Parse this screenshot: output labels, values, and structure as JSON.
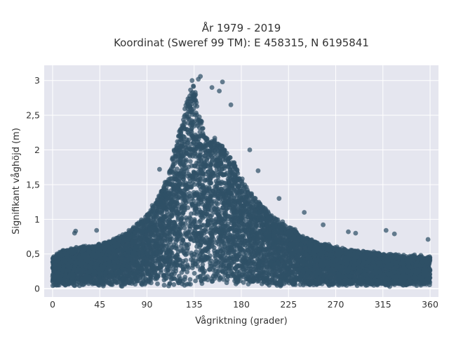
{
  "chart_data": {
    "type": "scatter",
    "title_lines": [
      "År 1979 - 2019",
      "Koordinat (Sweref 99 TM): E 458315, N 6195841"
    ],
    "xlabel": "Vågriktning (grader)",
    "ylabel": "Signifikant våghöjd (m)",
    "xlim": [
      -8,
      368
    ],
    "ylim": [
      -0.12,
      3.22
    ],
    "x_ticks": [
      0,
      45,
      90,
      135,
      180,
      225,
      270,
      315,
      360
    ],
    "x_tick_labels": [
      "0",
      "45",
      "90",
      "135",
      "180",
      "225",
      "270",
      "315",
      "360"
    ],
    "y_ticks": [
      0,
      0.5,
      1,
      1.5,
      2,
      2.5,
      3
    ],
    "y_tick_labels": [
      "0",
      "0,5",
      "1",
      "1,5",
      "2",
      "2,5",
      "3"
    ],
    "grid": true,
    "legend": "none",
    "plot_background": "#e5e6ef",
    "point_color": "#2f5166",
    "envelope": {
      "x": [
        0,
        10,
        20,
        30,
        45,
        60,
        75,
        90,
        100,
        110,
        115,
        120,
        125,
        130,
        135,
        140,
        145,
        150,
        155,
        160,
        165,
        170,
        180,
        190,
        200,
        210,
        225,
        240,
        255,
        270,
        285,
        300,
        315,
        330,
        345,
        360
      ],
      "upper": [
        0.45,
        0.55,
        0.58,
        0.6,
        0.63,
        0.72,
        0.85,
        1.05,
        1.3,
        1.6,
        1.95,
        2.2,
        2.55,
        2.85,
        2.95,
        2.6,
        2.2,
        2.15,
        2.2,
        2.1,
        2.0,
        1.9,
        1.6,
        1.35,
        1.2,
        1.05,
        0.9,
        0.75,
        0.65,
        0.6,
        0.55,
        0.52,
        0.5,
        0.48,
        0.47,
        0.45
      ],
      "lower": 0.05
    },
    "outliers": [
      {
        "x": 21,
        "y": 0.8
      },
      {
        "x": 22,
        "y": 0.83
      },
      {
        "x": 42,
        "y": 0.84
      },
      {
        "x": 95,
        "y": 1.2
      },
      {
        "x": 102,
        "y": 1.72
      },
      {
        "x": 133,
        "y": 3.0
      },
      {
        "x": 139,
        "y": 3.02
      },
      {
        "x": 141,
        "y": 3.06
      },
      {
        "x": 162,
        "y": 2.98
      },
      {
        "x": 159,
        "y": 2.85
      },
      {
        "x": 152,
        "y": 2.9
      },
      {
        "x": 170,
        "y": 2.65
      },
      {
        "x": 188,
        "y": 2.0
      },
      {
        "x": 196,
        "y": 1.7
      },
      {
        "x": 216,
        "y": 1.3
      },
      {
        "x": 240,
        "y": 1.1
      },
      {
        "x": 258,
        "y": 0.92
      },
      {
        "x": 282,
        "y": 0.82
      },
      {
        "x": 289,
        "y": 0.8
      },
      {
        "x": 318,
        "y": 0.84
      },
      {
        "x": 326,
        "y": 0.79
      },
      {
        "x": 358,
        "y": 0.71
      }
    ]
  }
}
